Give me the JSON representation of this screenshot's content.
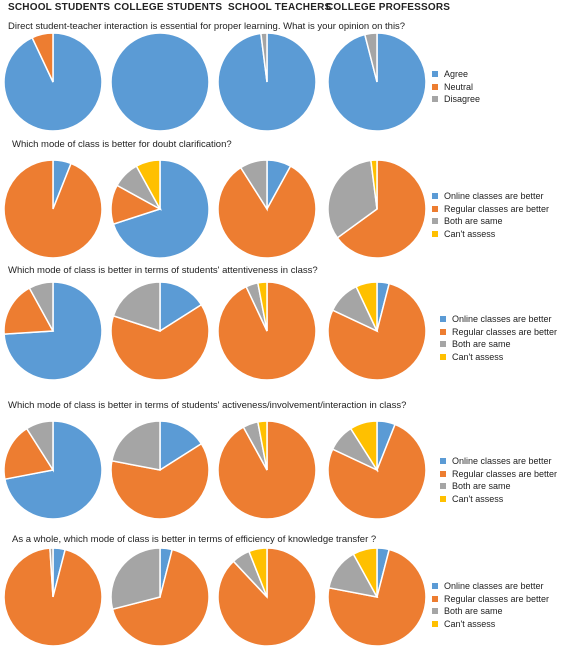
{
  "column_headers": [
    "SCHOOL STUDENTS",
    "COLLEGE STUDENTS",
    "SCHOOL TEACHERS",
    "COLLEGE PROFESSORS"
  ],
  "colors": {
    "blue": "#5b9bd5",
    "orange": "#ed7d31",
    "gray": "#a5a5a5",
    "yellow": "#ffc000"
  },
  "chart_data": [
    {
      "type": "pie",
      "question": "Direct student-teacher interaction is essential for proper learning.  What is your opinion on this?",
      "legend": [
        "Agree",
        "Neutral",
        "Disagree"
      ],
      "groups": [
        {
          "name": "SCHOOL STUDENTS",
          "values": [
            93,
            7,
            0
          ]
        },
        {
          "name": "COLLEGE STUDENTS",
          "values": [
            100,
            0,
            0
          ]
        },
        {
          "name": "SCHOOL TEACHERS",
          "values": [
            98,
            0,
            2
          ]
        },
        {
          "name": "COLLEGE PROFESSORS",
          "values": [
            96,
            0,
            4
          ]
        }
      ]
    },
    {
      "type": "pie",
      "question": "Which mode of class is better for doubt clarification?",
      "legend": [
        "Online classes are better",
        "Regular classes are better",
        "Both are same",
        "Can't assess"
      ],
      "groups": [
        {
          "name": "SCHOOL STUDENTS",
          "values": [
            6,
            94,
            0,
            0
          ]
        },
        {
          "name": "COLLEGE STUDENTS",
          "values": [
            70,
            13,
            9,
            8
          ]
        },
        {
          "name": "SCHOOL TEACHERS",
          "values": [
            8,
            83,
            9,
            0
          ]
        },
        {
          "name": "COLLEGE PROFESSORS",
          "values": [
            0,
            65,
            33,
            2
          ]
        }
      ]
    },
    {
      "type": "pie",
      "question": "Which mode of class is better in terms of students' attentiveness  in class?",
      "legend": [
        "Online classes are better",
        "Regular classes are better",
        "Both are same",
        "Can't assess"
      ],
      "groups": [
        {
          "name": "SCHOOL STUDENTS",
          "values": [
            74,
            18,
            8,
            0
          ]
        },
        {
          "name": "COLLEGE STUDENTS",
          "values": [
            16,
            64,
            20,
            0
          ]
        },
        {
          "name": "SCHOOL TEACHERS",
          "values": [
            0,
            93,
            4,
            3
          ]
        },
        {
          "name": "COLLEGE PROFESSORS",
          "values": [
            4,
            78,
            11,
            7
          ]
        }
      ]
    },
    {
      "type": "pie",
      "question": "Which mode of  class is better in terms of students' activeness/involvement/interaction  in class?",
      "legend": [
        "Online classes are better",
        "Regular classes are better",
        "Both are same",
        "Can't assess"
      ],
      "groups": [
        {
          "name": "SCHOOL STUDENTS",
          "values": [
            72,
            19,
            9,
            0
          ]
        },
        {
          "name": "COLLEGE STUDENTS",
          "values": [
            16,
            62,
            22,
            0
          ]
        },
        {
          "name": "SCHOOL TEACHERS",
          "values": [
            0,
            92,
            5,
            3
          ]
        },
        {
          "name": "COLLEGE PROFESSORS",
          "values": [
            6,
            76,
            9,
            9
          ]
        }
      ]
    },
    {
      "type": "pie",
      "question": "As a whole, which mode of class is better in terms of efficiency of knowledge transfer  ?",
      "legend": [
        "Online classes are better",
        "Regular classes are better",
        "Both are same",
        "Can't assess"
      ],
      "groups": [
        {
          "name": "SCHOOL STUDENTS",
          "values": [
            4,
            95,
            1,
            0
          ]
        },
        {
          "name": "COLLEGE STUDENTS",
          "values": [
            4,
            67,
            29,
            0
          ]
        },
        {
          "name": "SCHOOL TEACHERS",
          "values": [
            0,
            88,
            6,
            6
          ]
        },
        {
          "name": "COLLEGE PROFESSORS",
          "values": [
            4,
            74,
            14,
            8
          ]
        }
      ]
    }
  ]
}
